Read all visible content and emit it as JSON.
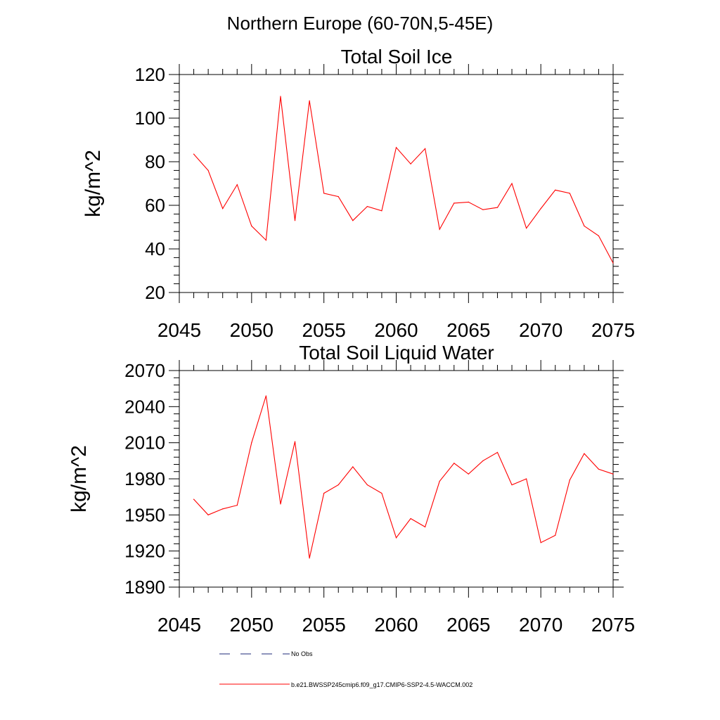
{
  "suptitle": "Northern Europe (60-70N,5-45E)",
  "line_color": "#ff0000",
  "obs_color": "#1e2a78",
  "legend": {
    "obs_label": "No Obs",
    "model_label": "b.e21.BWSSP245cmip6.f09_g17.CMIP6-SSP2-4.5-WACCM.002"
  },
  "chart_data": [
    {
      "type": "line",
      "title": "Total Soil Ice",
      "xlabel": "",
      "ylabel": "kg/m^2",
      "xlim": [
        2045,
        2075
      ],
      "ylim": [
        20,
        120
      ],
      "xticks": [
        2045,
        2050,
        2055,
        2060,
        2065,
        2070,
        2075
      ],
      "yticks": [
        20,
        40,
        60,
        80,
        100,
        120
      ],
      "grid": false,
      "series": [
        {
          "name": "b.e21.BWSSP245cmip6.f09_g17.CMIP6-SSP2-4.5-WACCM.002",
          "x": [
            2046,
            2047,
            2048,
            2049,
            2050,
            2051,
            2052,
            2053,
            2054,
            2055,
            2056,
            2057,
            2058,
            2059,
            2060,
            2061,
            2062,
            2063,
            2064,
            2065,
            2066,
            2067,
            2068,
            2069,
            2070,
            2071,
            2072,
            2073,
            2074,
            2075
          ],
          "y": [
            83.5,
            76,
            58.5,
            69.5,
            50.5,
            44,
            110,
            53,
            108,
            65.5,
            64,
            53,
            59.5,
            57.5,
            86.5,
            79,
            86,
            49,
            61,
            61.5,
            58,
            59,
            70,
            49.5,
            58.5,
            67,
            65.5,
            50.5,
            46,
            33.5
          ]
        }
      ]
    },
    {
      "type": "line",
      "title": "Total Soil Liquid Water",
      "xlabel": "",
      "ylabel": "kg/m^2",
      "xlim": [
        2045,
        2075
      ],
      "ylim": [
        1890,
        2070
      ],
      "xticks": [
        2045,
        2050,
        2055,
        2060,
        2065,
        2070,
        2075
      ],
      "yticks": [
        1890,
        1920,
        1950,
        1980,
        2010,
        2040,
        2070
      ],
      "grid": false,
      "series": [
        {
          "name": "b.e21.BWSSP245cmip6.f09_g17.CMIP6-SSP2-4.5-WACCM.002",
          "x": [
            2046,
            2047,
            2048,
            2049,
            2050,
            2051,
            2052,
            2053,
            2054,
            2055,
            2056,
            2057,
            2058,
            2059,
            2060,
            2061,
            2062,
            2063,
            2064,
            2065,
            2066,
            2067,
            2068,
            2069,
            2070,
            2071,
            2072,
            2073,
            2074,
            2075
          ],
          "y": [
            1963,
            1950,
            1955,
            1958,
            2010,
            2049,
            1959,
            2011,
            1914,
            1968,
            1975,
            1990,
            1975,
            1968,
            1931,
            1947,
            1940,
            1978,
            1993,
            1984,
            1995,
            2002,
            1975,
            1980,
            1927,
            1933,
            1979,
            2001,
            1988,
            1984
          ]
        }
      ]
    }
  ]
}
